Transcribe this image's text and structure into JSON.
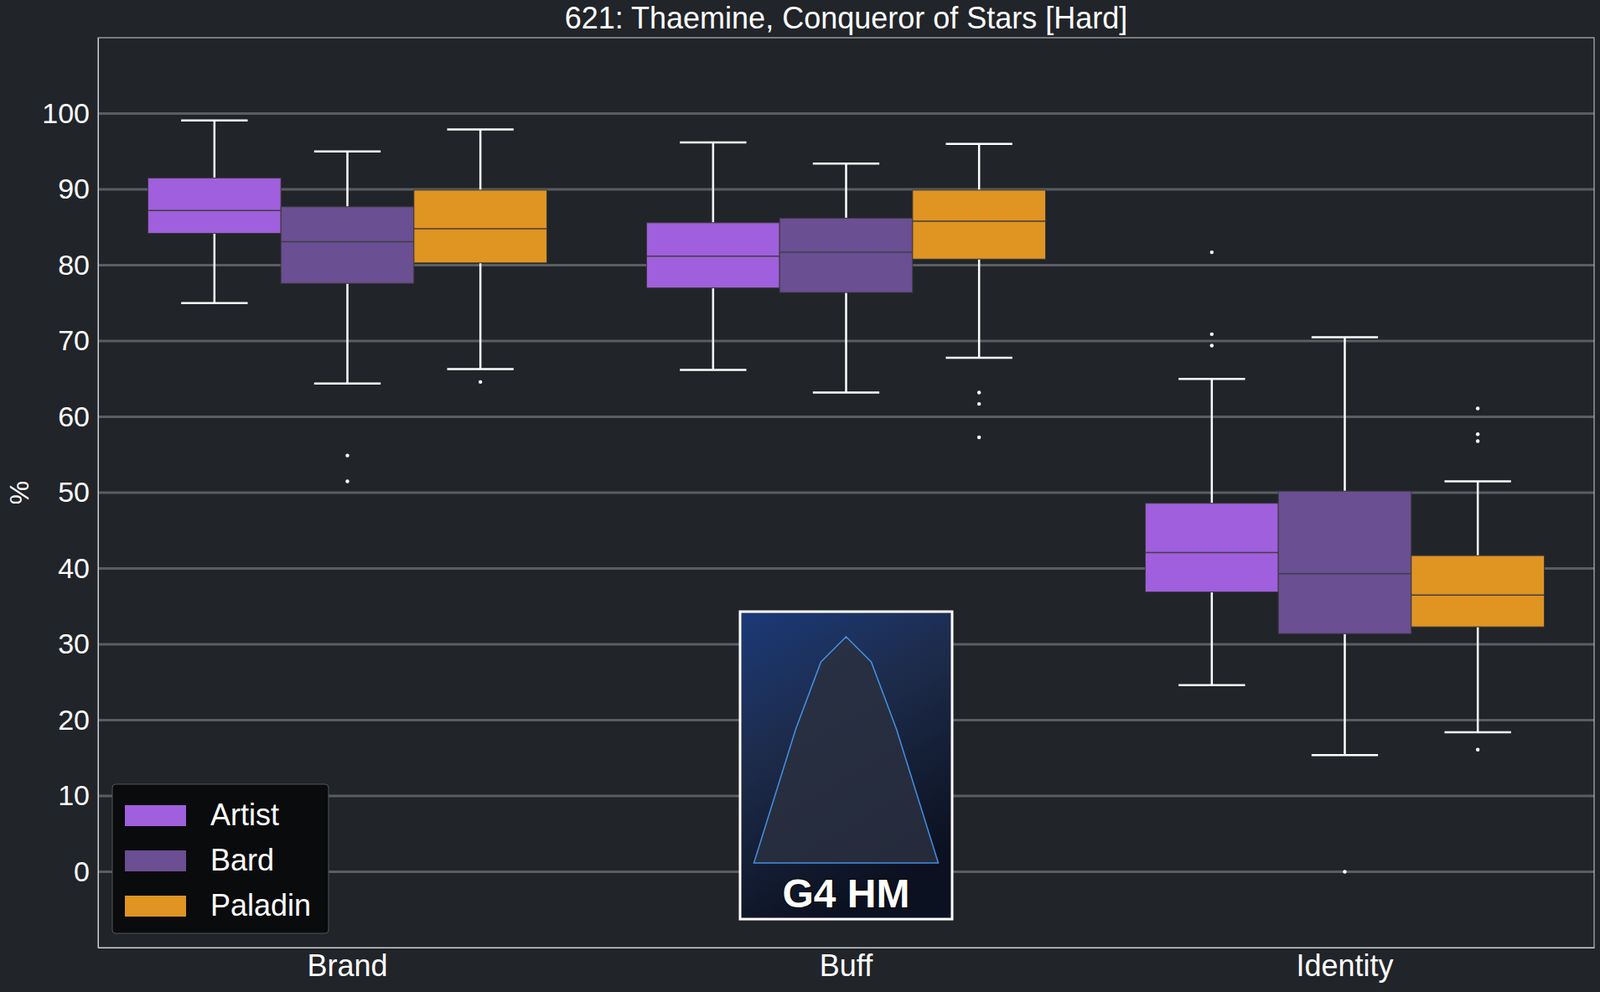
{
  "chart_data": {
    "type": "box",
    "title": "621: Thaemine, Conqueror of Stars [Hard]",
    "y_label": "%",
    "annotation": "G4 HM",
    "categories": [
      "Brand",
      "Buff",
      "Identity"
    ],
    "ylim": [
      -10,
      110
    ],
    "yticks": [
      0,
      10,
      20,
      30,
      40,
      50,
      60,
      70,
      80,
      90,
      100
    ],
    "grid": true,
    "legend": "lower left",
    "series": [
      {
        "name": "Artist",
        "color": "#a05fdc",
        "whislo": [
          75.0,
          66.2,
          24.6
        ],
        "q1": [
          84.2,
          77.0,
          36.9
        ],
        "median": [
          87.2,
          81.2,
          42.1
        ],
        "q3": [
          91.5,
          85.6,
          48.6
        ],
        "whishi": [
          99.1,
          96.2,
          65.0
        ],
        "fliers": [
          [],
          [],
          [
            81.7,
            70.9,
            69.4
          ]
        ]
      },
      {
        "name": "Bard",
        "color": "#6a4f93",
        "whislo": [
          64.4,
          63.2,
          15.4
        ],
        "q1": [
          77.6,
          76.4,
          31.4
        ],
        "median": [
          83.1,
          81.7,
          39.3
        ],
        "q3": [
          87.7,
          86.2,
          50.2
        ],
        "whishi": [
          95.0,
          93.4,
          70.5
        ],
        "fliers": [
          [
            54.9,
            51.5
          ],
          [],
          [
            0
          ]
        ]
      },
      {
        "name": "Paladin",
        "color": "#e09422",
        "whislo": [
          66.3,
          67.8,
          18.4
        ],
        "q1": [
          80.3,
          80.8,
          32.3
        ],
        "median": [
          84.8,
          85.8,
          36.5
        ],
        "q3": [
          89.9,
          89.9,
          41.7
        ],
        "whishi": [
          97.9,
          96.0,
          51.5
        ],
        "fliers": [
          [
            64.6
          ],
          [
            63.2,
            61.7,
            57.3
          ],
          [
            61.1,
            57.7,
            56.8,
            16.1
          ]
        ]
      }
    ]
  }
}
